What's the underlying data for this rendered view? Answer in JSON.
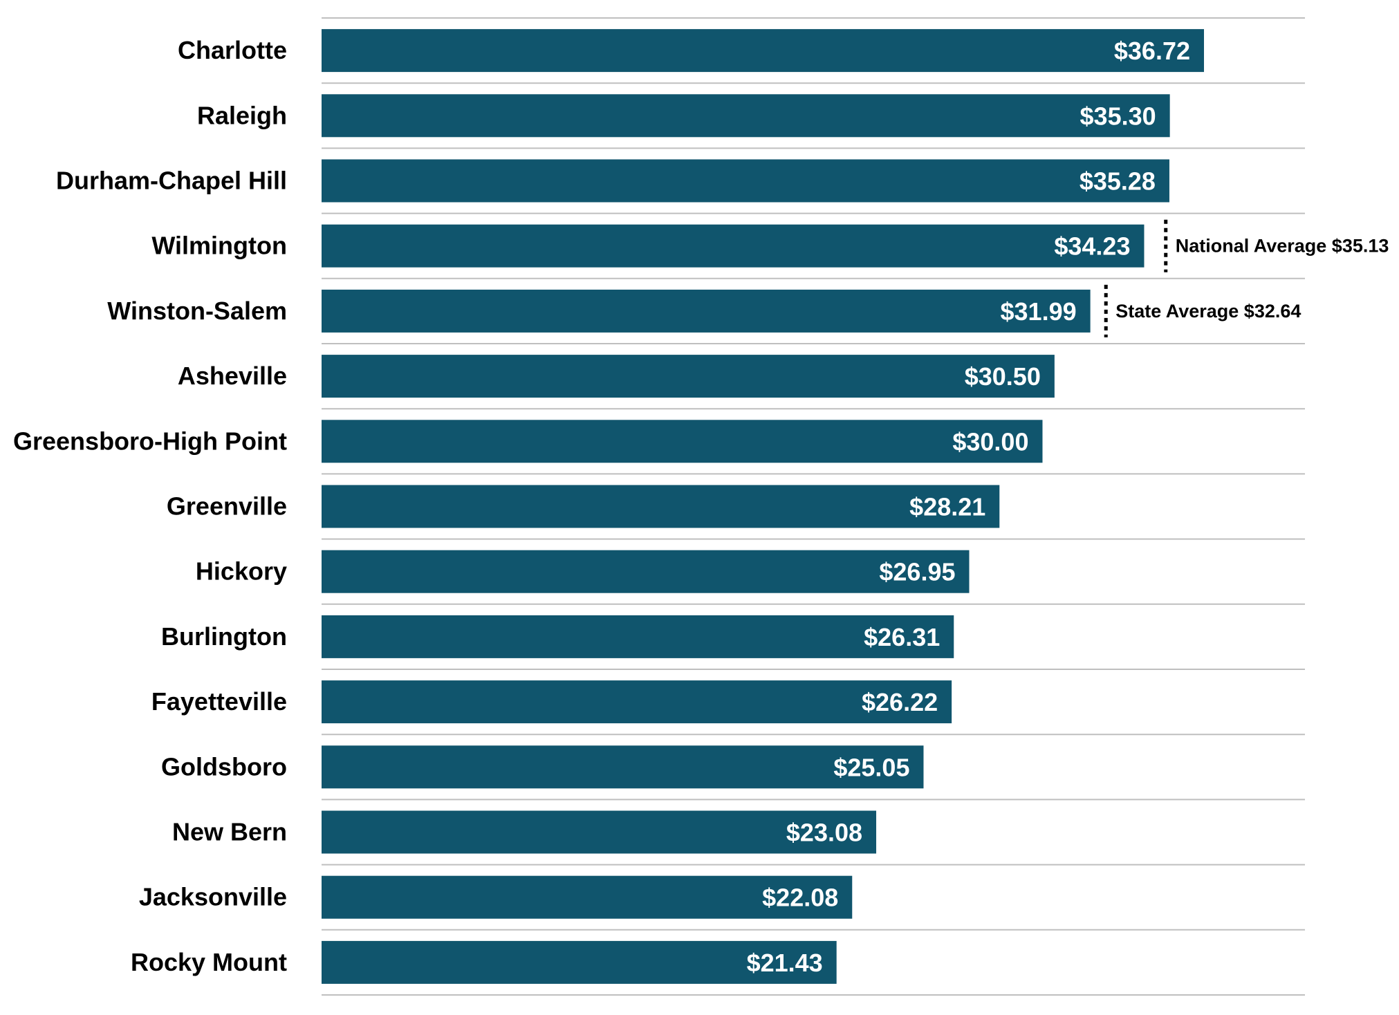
{
  "chart_data": {
    "type": "bar",
    "orientation": "horizontal",
    "categories": [
      "Charlotte",
      "Raleigh",
      "Durham-Chapel Hill",
      "Wilmington",
      "Winston-Salem",
      "Asheville",
      "Greensboro-High Point",
      "Greenville",
      "Hickory",
      "Burlington",
      "Fayetteville",
      "Goldsboro",
      "New Bern",
      "Jacksonville",
      "Rocky Mount"
    ],
    "values": [
      36.72,
      35.3,
      35.28,
      34.23,
      31.99,
      30.5,
      30.0,
      28.21,
      26.95,
      26.31,
      26.22,
      25.05,
      23.08,
      22.08,
      21.43
    ],
    "value_labels": [
      "$36.72",
      "$35.30",
      "$35.28",
      "$34.23",
      "$31.99",
      "$30.50",
      "$30.00",
      "$28.21",
      "$26.95",
      "$26.31",
      "$26.22",
      "$25.05",
      "$23.08",
      "$22.08",
      "$21.43"
    ],
    "xlim": [
      0,
      40
    ],
    "reference_lines": [
      {
        "label": "National Average $35.13",
        "value": 35.13,
        "category": "Wilmington"
      },
      {
        "label": "State Average $32.64",
        "value": 32.64,
        "category": "Winston-Salem"
      }
    ],
    "title": "",
    "xlabel": "",
    "ylabel": "",
    "grid": true,
    "legend": "none",
    "colors": {
      "bar": "#10556d",
      "gridline": "#bfbfbf",
      "reference": "#000000"
    }
  }
}
